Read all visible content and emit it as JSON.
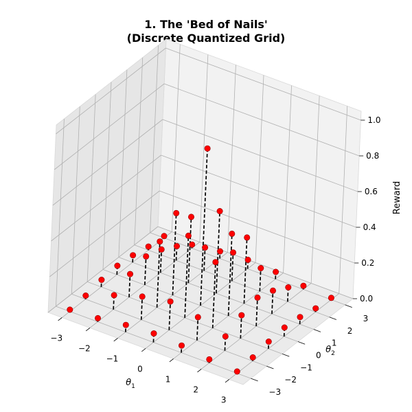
{
  "chart_data": {
    "type": "scatter",
    "title_lines": [
      "1. The 'Bed of Nails'",
      "(Discrete Quantized Grid)"
    ],
    "xlabel": "θ1",
    "ylabel": "θ2",
    "zlabel": "Reward",
    "xlim": [
      -3.5,
      3.5
    ],
    "ylim": [
      -3.5,
      3.5
    ],
    "zlim": [
      0,
      1.05
    ],
    "x_ticks": [
      -3,
      -2,
      -1,
      0,
      1,
      2,
      3
    ],
    "y_ticks": [
      -3,
      -2,
      -1,
      0,
      1,
      2,
      3
    ],
    "z_ticks": [
      0.0,
      0.2,
      0.4,
      0.6,
      0.8,
      1.0
    ],
    "x_tick_labels": [
      "−3",
      "−2",
      "−1",
      "0",
      "1",
      "2",
      "3"
    ],
    "y_tick_labels": [
      "−3",
      "−2",
      "−1",
      "0",
      "1",
      "2",
      "3"
    ],
    "z_tick_labels": [
      "0.0",
      "0.2",
      "0.4",
      "0.6",
      "0.8",
      "1.0"
    ],
    "grid": true,
    "marker_color": "#ff0000",
    "stem_color": "#000000",
    "grid_x": [
      -3,
      -2,
      -1,
      0,
      1,
      2,
      3
    ],
    "grid_y": [
      -3,
      -2,
      -1,
      0,
      1,
      2,
      3
    ],
    "z_values": [
      [
        0.01,
        0.02,
        0.04,
        0.05,
        0.04,
        0.02,
        0.01
      ],
      [
        0.02,
        0.08,
        0.13,
        0.16,
        0.13,
        0.08,
        0.02
      ],
      [
        0.04,
        0.13,
        0.37,
        0.46,
        0.37,
        0.13,
        0.04
      ],
      [
        0.05,
        0.16,
        0.46,
        0.88,
        0.46,
        0.16,
        0.05
      ],
      [
        0.04,
        0.13,
        0.37,
        0.46,
        0.37,
        0.13,
        0.04
      ],
      [
        0.02,
        0.08,
        0.13,
        0.16,
        0.13,
        0.08,
        0.02
      ],
      [
        0.01,
        0.02,
        0.04,
        0.05,
        0.04,
        0.02,
        0.01
      ]
    ]
  }
}
